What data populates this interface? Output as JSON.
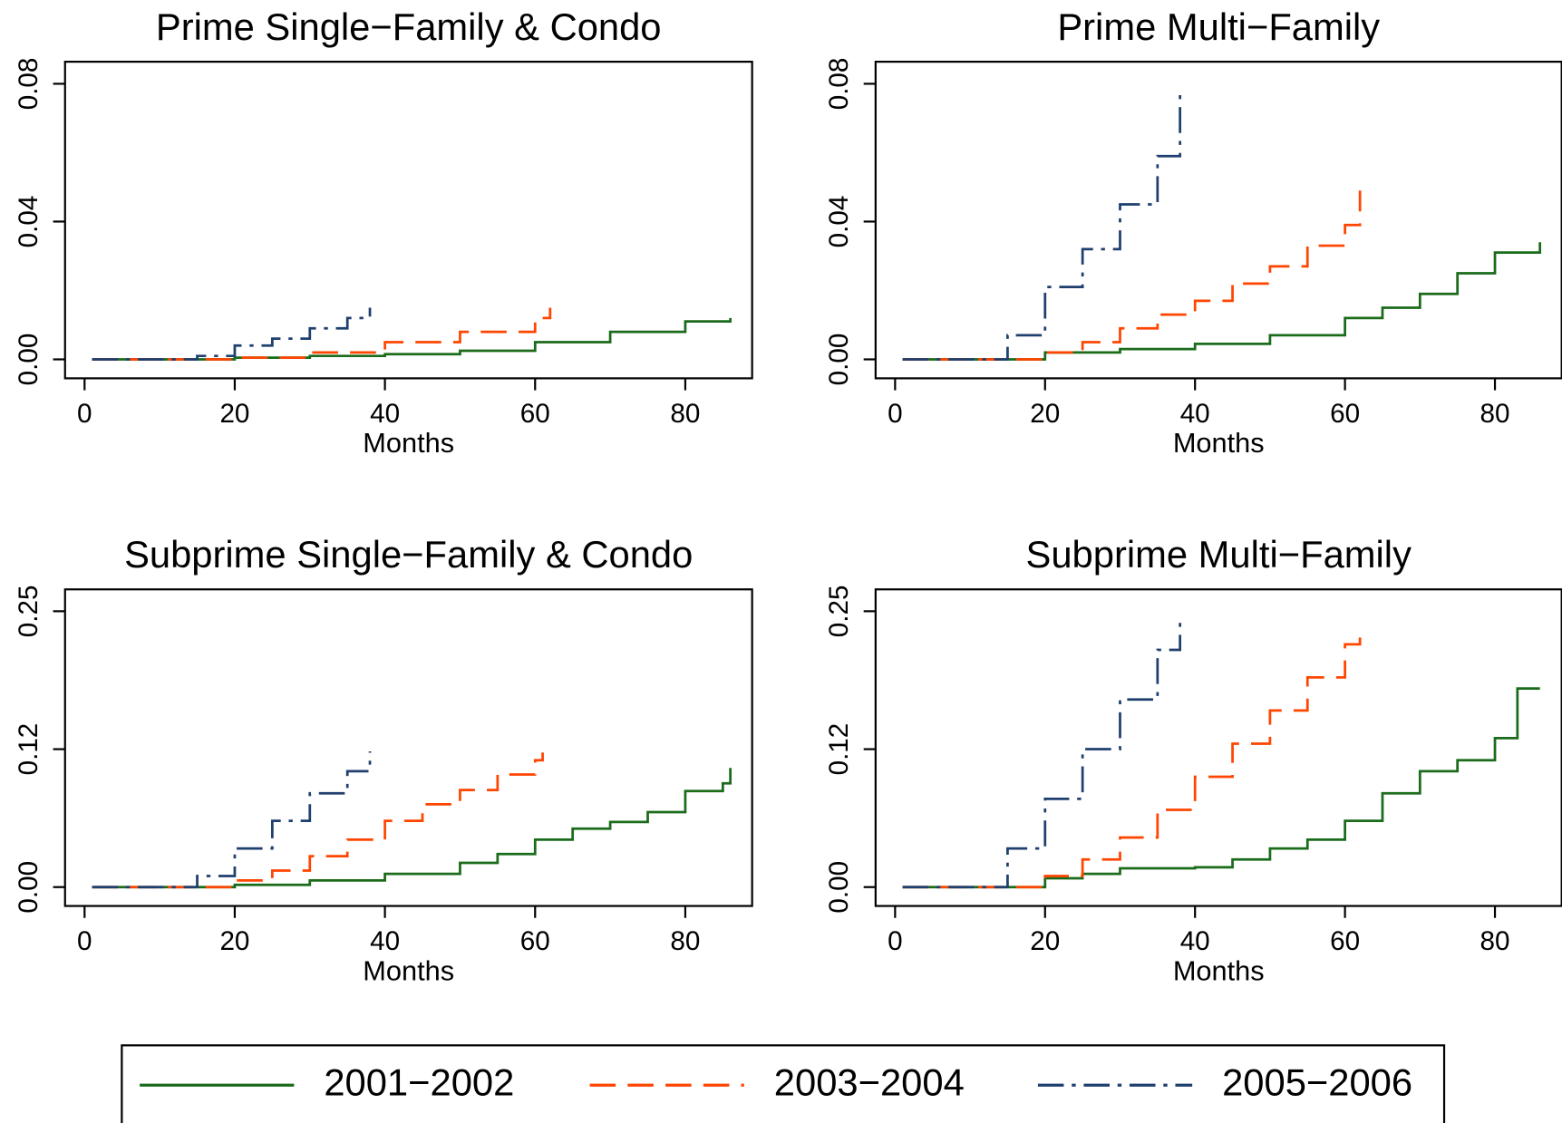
{
  "chart_data": [
    {
      "type": "line",
      "step": true,
      "title": "Prime Single−Family & Condo",
      "xlabel": "Months",
      "xlim": [
        -2.6,
        88.9
      ],
      "xticks": [
        0,
        20,
        40,
        60,
        80
      ],
      "ylim": [
        -0.0055,
        0.0864
      ],
      "yticks": [
        {
          "value": 0,
          "label": "0.00"
        },
        {
          "value": 0.04,
          "label": "0.04"
        },
        {
          "value": 0.08,
          "label": "0.08"
        }
      ],
      "series": [
        {
          "name": "2001−2002",
          "color": "#1a6b1a",
          "dash": "solid",
          "x": [
            1,
            10,
            20,
            30,
            40,
            50,
            60,
            70,
            80,
            86
          ],
          "values": [
            0,
            0,
            0.0005,
            0.001,
            0.0015,
            0.0025,
            0.005,
            0.008,
            0.011,
            0.012
          ]
        },
        {
          "name": "2003−2004",
          "color": "#ff4500",
          "dash": "dashed",
          "x": [
            1,
            10,
            20,
            30,
            40,
            50,
            60,
            62
          ],
          "values": [
            0,
            0,
            0.0005,
            0.002,
            0.005,
            0.008,
            0.012,
            0.015
          ]
        },
        {
          "name": "2005−2006",
          "color": "#1f3f6e",
          "dash": "dashdot",
          "x": [
            1,
            10,
            15,
            20,
            25,
            30,
            35,
            38
          ],
          "values": [
            0,
            0,
            0.001,
            0.004,
            0.006,
            0.009,
            0.012,
            0.015
          ]
        }
      ]
    },
    {
      "type": "line",
      "step": true,
      "title": "Prime Multi−Family",
      "xlabel": "Months",
      "xlim": [
        -2.6,
        88.9
      ],
      "xticks": [
        0,
        20,
        40,
        60,
        80
      ],
      "ylim": [
        -0.0055,
        0.0864
      ],
      "yticks": [
        {
          "value": 0,
          "label": "0.00"
        },
        {
          "value": 0.04,
          "label": "0.04"
        },
        {
          "value": 0.08,
          "label": "0.08"
        }
      ],
      "series": [
        {
          "name": "2001−2002",
          "color": "#1a6b1a",
          "dash": "solid",
          "x": [
            1,
            10,
            20,
            30,
            40,
            50,
            60,
            65,
            70,
            75,
            80,
            86
          ],
          "values": [
            0,
            0,
            0.002,
            0.003,
            0.0045,
            0.007,
            0.012,
            0.015,
            0.019,
            0.025,
            0.031,
            0.034
          ]
        },
        {
          "name": "2003−2004",
          "color": "#ff4500",
          "dash": "dashed",
          "x": [
            1,
            10,
            20,
            25,
            30,
            35,
            40,
            45,
            50,
            55,
            60,
            62
          ],
          "values": [
            0,
            0,
            0.002,
            0.005,
            0.009,
            0.013,
            0.017,
            0.022,
            0.027,
            0.033,
            0.039,
            0.049
          ]
        },
        {
          "name": "2005−2006",
          "color": "#1f3f6e",
          "dash": "dashdot",
          "x": [
            1,
            10,
            15,
            20,
            25,
            30,
            35,
            38
          ],
          "values": [
            0,
            0,
            0.007,
            0.021,
            0.032,
            0.045,
            0.059,
            0.077
          ]
        }
      ]
    },
    {
      "type": "line",
      "step": true,
      "title": "Subprime Single−Family & Condo",
      "xlabel": "Months",
      "xlim": [
        -2.6,
        88.9
      ],
      "xticks": [
        0,
        20,
        40,
        60,
        80
      ],
      "ylim": [
        -0.0171,
        0.2698
      ],
      "yticks": [
        {
          "value": 0,
          "label": "0.00"
        },
        {
          "value": 0.125,
          "label": "0.12"
        },
        0.25
      ],
      "series": [
        {
          "name": "2001−2002",
          "color": "#1a6b1a",
          "dash": "solid",
          "x": [
            1,
            10,
            20,
            30,
            40,
            50,
            55,
            60,
            65,
            70,
            75,
            80,
            85,
            86
          ],
          "values": [
            0,
            0,
            0.002,
            0.006,
            0.012,
            0.022,
            0.03,
            0.043,
            0.053,
            0.059,
            0.068,
            0.087,
            0.094,
            0.108
          ]
        },
        {
          "name": "2003−2004",
          "color": "#ff4500",
          "dash": "dashed",
          "x": [
            1,
            10,
            20,
            25,
            30,
            35,
            40,
            45,
            50,
            55,
            60,
            61
          ],
          "values": [
            0,
            0,
            0.006,
            0.015,
            0.028,
            0.043,
            0.06,
            0.075,
            0.088,
            0.102,
            0.115,
            0.122
          ]
        },
        {
          "name": "2005−2006",
          "color": "#1f3f6e",
          "dash": "dashdot",
          "x": [
            1,
            10,
            15,
            20,
            25,
            30,
            35,
            38
          ],
          "values": [
            0,
            0,
            0.01,
            0.035,
            0.06,
            0.085,
            0.105,
            0.123
          ]
        }
      ]
    },
    {
      "type": "line",
      "step": true,
      "title": "Subprime Multi−Family",
      "xlabel": "Months",
      "xlim": [
        -2.6,
        88.9
      ],
      "xticks": [
        0,
        20,
        40,
        60,
        80
      ],
      "ylim": [
        -0.0171,
        0.2698
      ],
      "yticks": [
        {
          "value": 0,
          "label": "0.00"
        },
        {
          "value": 0.125,
          "label": "0.12"
        },
        0.25
      ],
      "series": [
        {
          "name": "2001−2002",
          "color": "#1a6b1a",
          "dash": "solid",
          "x": [
            1,
            10,
            20,
            25,
            30,
            35,
            40,
            45,
            50,
            55,
            60,
            65,
            70,
            75,
            80,
            83,
            86
          ],
          "values": [
            0,
            0,
            0.008,
            0.012,
            0.017,
            0.017,
            0.018,
            0.025,
            0.035,
            0.043,
            0.06,
            0.085,
            0.105,
            0.115,
            0.135,
            0.18,
            0.18
          ]
        },
        {
          "name": "2003−2004",
          "color": "#ff4500",
          "dash": "dashed",
          "x": [
            1,
            10,
            20,
            25,
            30,
            35,
            40,
            45,
            50,
            55,
            60,
            62
          ],
          "values": [
            0,
            0,
            0.01,
            0.025,
            0.045,
            0.07,
            0.1,
            0.13,
            0.16,
            0.19,
            0.22,
            0.228
          ]
        },
        {
          "name": "2005−2006",
          "color": "#1f3f6e",
          "dash": "dashdot",
          "x": [
            1,
            10,
            15,
            20,
            25,
            30,
            35,
            38
          ],
          "values": [
            0,
            0,
            0.035,
            0.08,
            0.125,
            0.17,
            0.215,
            0.245
          ]
        }
      ]
    }
  ]
}
